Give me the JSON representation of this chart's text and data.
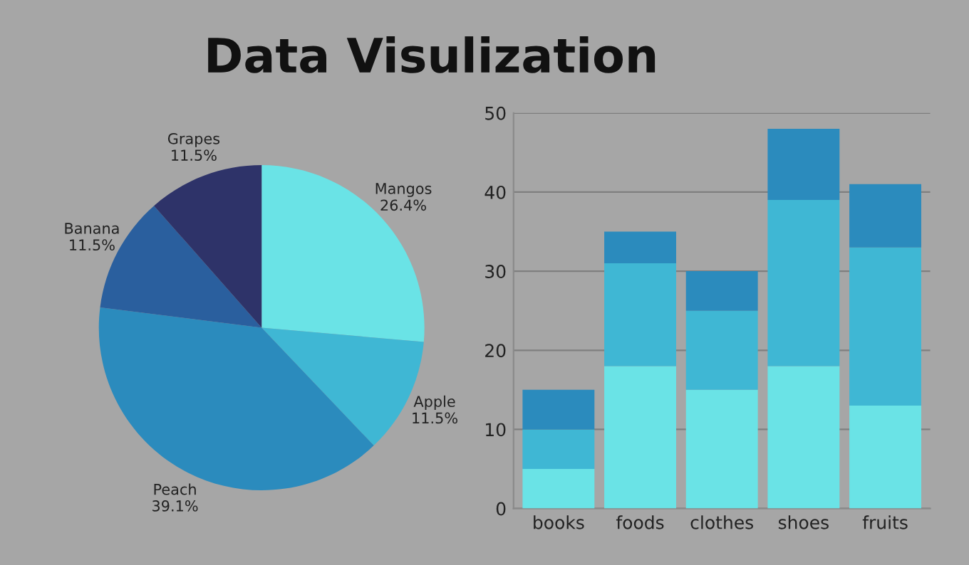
{
  "chart_data": [
    {
      "type": "pie",
      "title": "Data Visulization",
      "categories": [
        "Mangos",
        "Apple",
        "Peach",
        "Banana",
        "Grapes"
      ],
      "values": [
        26.4,
        11.5,
        39.1,
        11.5,
        11.5
      ],
      "colors": [
        "#6ae3e6",
        "#3fb7d4",
        "#2b8bbd",
        "#2a5f9e",
        "#2e3369"
      ],
      "value_labels": [
        "26.4%",
        "11.5%",
        "39.1%",
        "11.5%",
        "11.5%"
      ],
      "legend": false
    },
    {
      "type": "bar",
      "stacked": true,
      "categories": [
        "books",
        "foods",
        "clothes",
        "shoes",
        "fruits"
      ],
      "series": [
        {
          "color": "#6ae3e6",
          "values": [
            5,
            18,
            15,
            18,
            13
          ]
        },
        {
          "color": "#3fb7d4",
          "values": [
            5,
            13,
            10,
            21,
            20
          ]
        },
        {
          "color": "#2b8bbd",
          "values": [
            5,
            4,
            5,
            9,
            8
          ]
        }
      ],
      "ylim": [
        0,
        50
      ],
      "yticks": [
        0,
        10,
        20,
        30,
        40,
        50
      ],
      "grid": "y",
      "legend": false
    }
  ]
}
